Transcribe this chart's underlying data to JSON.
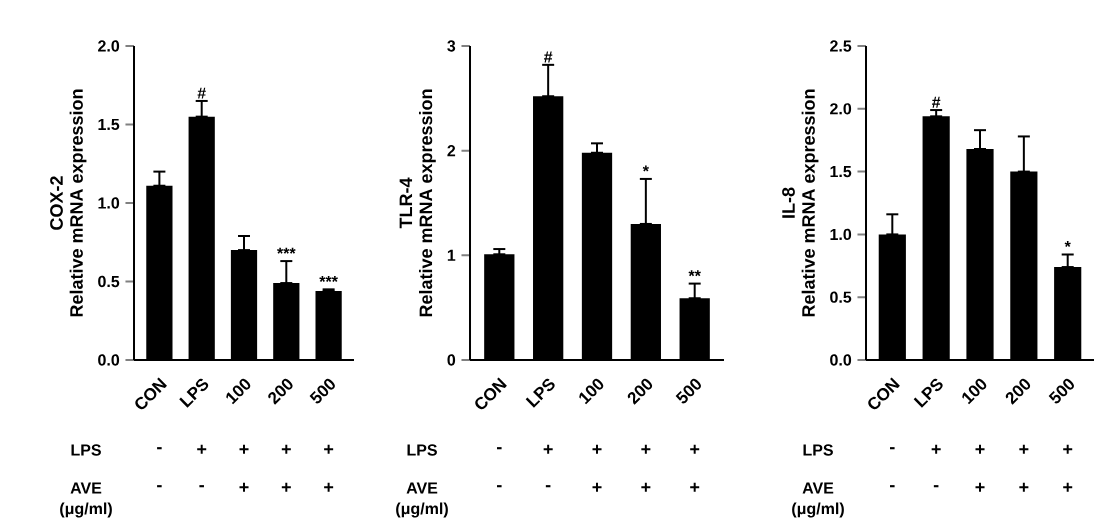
{
  "chart_data": [
    {
      "type": "bar",
      "title": "COX-2",
      "ylabel": "Relative mRNA expression",
      "categories": [
        "CON",
        "LPS",
        "100",
        "200",
        "500"
      ],
      "values": [
        1.11,
        1.55,
        0.7,
        0.49,
        0.44
      ],
      "errors": [
        [
          1.11,
          1.2
        ],
        [
          1.55,
          1.65
        ],
        [
          0.7,
          0.79
        ],
        [
          0.49,
          0.63
        ],
        [
          0.44,
          0.45
        ]
      ],
      "color": "#000000",
      "ylim": [
        0,
        2
      ],
      "yticks": [
        {
          "value": 0,
          "label": "0.0"
        },
        {
          "value": 0.5,
          "label": "0.5"
        },
        {
          "value": 1,
          "label": "1.0"
        },
        {
          "value": 1.5,
          "label": "1.5"
        },
        {
          "value": 2,
          "label": "2.0"
        }
      ],
      "annotations": [
        {
          "text": "#",
          "x": "LPS",
          "y": 1.65
        },
        {
          "text": "***",
          "x": "200",
          "y": 0.63
        },
        {
          "text": "***",
          "x": "500",
          "y": 0.45
        },
        "LPS",
        "-",
        "+",
        "+",
        "+",
        "+",
        "AVE",
        "-",
        "-",
        "+",
        "+",
        "+",
        "(μg/ml)"
      ]
    },
    {
      "type": "bar",
      "title": "TLR-4",
      "ylabel": "Relative mRNA expression",
      "categories": [
        "CON",
        "LPS",
        "100",
        "200",
        "500"
      ],
      "values": [
        1.01,
        2.52,
        1.98,
        1.3,
        0.59
      ],
      "errors": [
        [
          1.01,
          1.06
        ],
        [
          2.52,
          2.82
        ],
        [
          1.98,
          2.07
        ],
        [
          1.3,
          1.73
        ],
        [
          0.59,
          0.73
        ]
      ],
      "color": "#000000",
      "ylim": [
        0,
        3
      ],
      "yticks": [
        0,
        1,
        2,
        3
      ],
      "annotations": [
        {
          "text": "#",
          "x": "LPS",
          "y": 2.82
        },
        {
          "text": "*",
          "x": "200",
          "y": 1.73
        },
        {
          "text": "**",
          "x": "500",
          "y": 0.73
        },
        "LPS",
        "-",
        "+",
        "+",
        "+",
        "+",
        "AVE",
        "-",
        "-",
        "+",
        "+",
        "+",
        "(μg/ml)"
      ]
    },
    {
      "type": "bar",
      "title": "IL-8",
      "ylabel": "Relative mRNA expression",
      "categories": [
        "CON",
        "LPS",
        "100",
        "200",
        "500"
      ],
      "values": [
        1.0,
        1.94,
        1.68,
        1.5,
        0.74
      ],
      "errors": [
        [
          1.0,
          1.16
        ],
        [
          1.94,
          1.99
        ],
        [
          1.68,
          1.83
        ],
        [
          1.5,
          1.78
        ],
        [
          0.74,
          0.84
        ]
      ],
      "color": "#000000",
      "ylim": [
        0,
        2.5
      ],
      "yticks": [
        {
          "value": 0,
          "label": "0.0"
        },
        {
          "value": 0.5,
          "label": "0.5"
        },
        {
          "value": 1,
          "label": "1.0"
        },
        {
          "value": 1.5,
          "label": "1.5"
        },
        {
          "value": 2,
          "label": "2.0"
        },
        {
          "value": 2.5,
          "label": "2.5"
        }
      ],
      "annotations": [
        {
          "text": "#",
          "x": "LPS",
          "y": 1.99
        },
        {
          "text": "*",
          "x": "500",
          "y": 0.84
        },
        "LPS",
        "-",
        "+",
        "+",
        "+",
        "+",
        "AVE",
        "-",
        "-",
        "+",
        "+",
        "+",
        "(μg/ml)"
      ]
    }
  ]
}
